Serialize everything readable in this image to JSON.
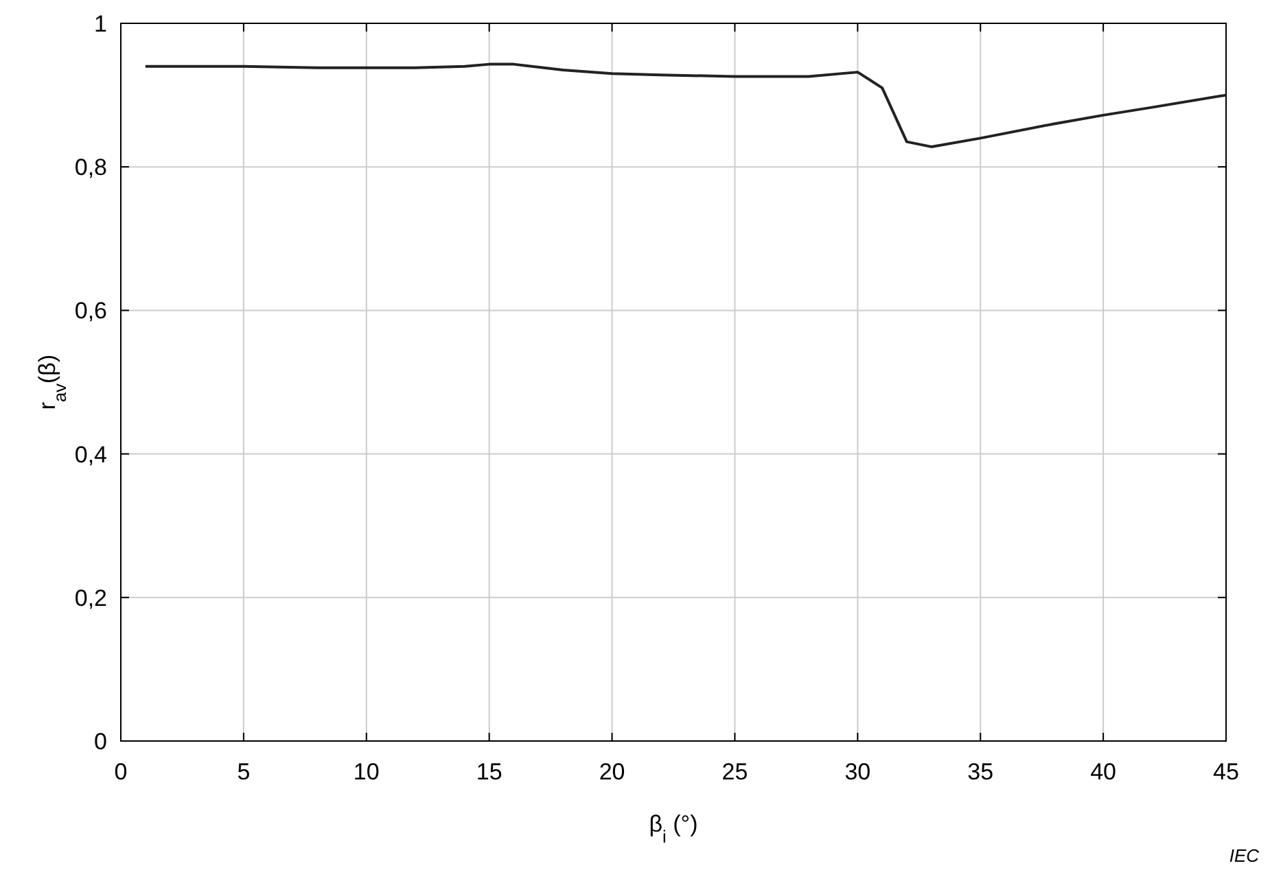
{
  "chart_data": {
    "type": "line",
    "xlabel": "β$_{i}$  (°)",
    "ylabel": "r$_{av}$(β)",
    "annotations": [
      "IEC"
    ],
    "x": [
      1,
      5,
      8,
      10,
      12,
      14,
      15,
      16,
      18,
      20,
      22,
      25,
      28,
      30,
      31,
      32,
      33,
      35,
      38,
      40,
      42,
      45
    ],
    "series": [
      {
        "color": "#222222",
        "values": [
          0.94,
          0.94,
          0.938,
          0.938,
          0.938,
          0.94,
          0.943,
          0.943,
          0.935,
          0.93,
          0.928,
          0.926,
          0.926,
          0.932,
          0.91,
          0.835,
          0.828,
          0.84,
          0.86,
          0.872,
          0.883,
          0.9
        ]
      }
    ],
    "xlim": [
      0,
      45
    ],
    "xticks": [
      0,
      5,
      10,
      15,
      20,
      25,
      30,
      35,
      40,
      45
    ],
    "ylim": [
      0,
      1
    ],
    "yticks": [
      0,
      {
        "value": 0.2,
        "label": "0,2"
      },
      {
        "value": 0.4,
        "label": "0,4"
      },
      {
        "value": 0.6,
        "label": "0,6"
      },
      {
        "value": 0.8,
        "label": "0,8"
      },
      1
    ],
    "grid": true,
    "marker": "none",
    "line_style": "solid"
  }
}
